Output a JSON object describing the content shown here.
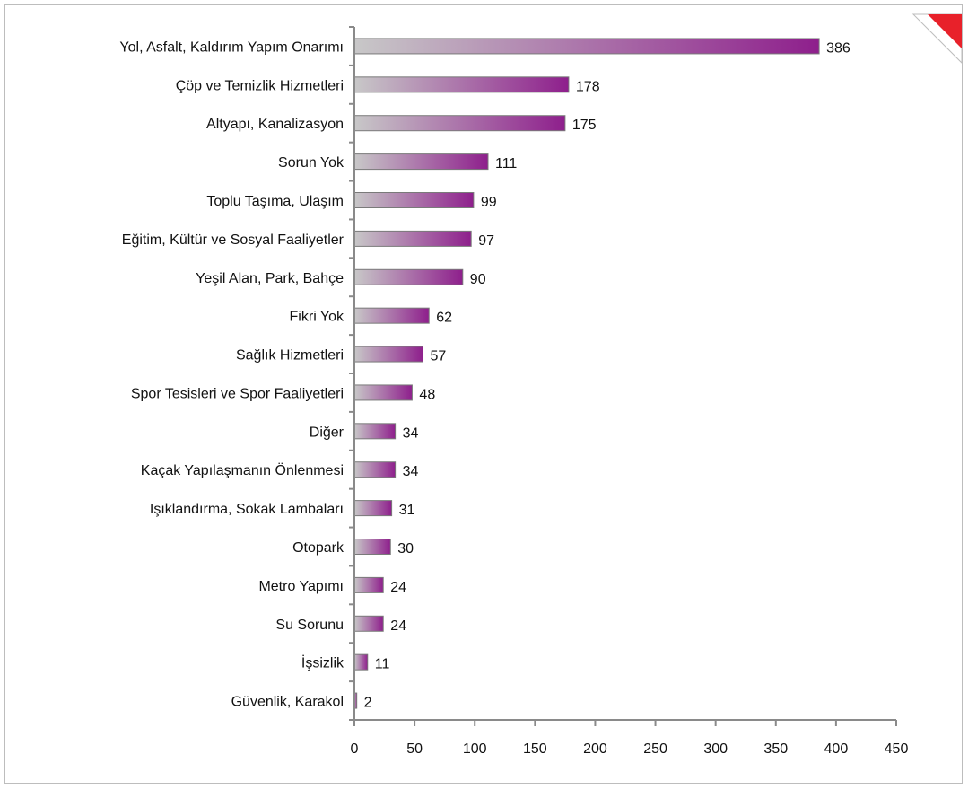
{
  "chart_data": {
    "type": "bar",
    "orientation": "horizontal",
    "categories": [
      "Yol, Asfalt, Kaldırım Yapım Onarımı",
      "Çöp ve Temizlik Hizmetleri",
      "Altyapı, Kanalizasyon",
      "Sorun Yok",
      "Toplu Taşıma, Ulaşım",
      "Eğitim, Kültür ve Sosyal Faaliyetler",
      "Yeşil Alan, Park, Bahçe",
      "Fikri Yok",
      "Sağlık Hizmetleri",
      "Spor Tesisleri ve Spor Faaliyetleri",
      "Diğer",
      "Kaçak Yapılaşmanın Önlenmesi",
      "Işıklandırma, Sokak Lambaları",
      "Otopark",
      "Metro Yapımı",
      "Su Sorunu",
      "İşsizlik",
      "Güvenlik, Karakol"
    ],
    "values": [
      386,
      178,
      175,
      111,
      99,
      97,
      90,
      62,
      57,
      48,
      34,
      34,
      31,
      30,
      24,
      24,
      11,
      2
    ],
    "data_labels": [
      "386",
      "178",
      "175",
      "111",
      "99",
      "97",
      "90",
      "62",
      "57",
      "48",
      "34",
      "34",
      "31",
      "30",
      "24",
      "24",
      "11",
      "2"
    ],
    "xlim": [
      0,
      450
    ],
    "xticks": [
      0,
      50,
      100,
      150,
      200,
      250,
      300,
      350,
      400,
      450
    ],
    "xtick_labels": [
      "0",
      "50",
      "100",
      "150",
      "200",
      "250",
      "300",
      "350",
      "400",
      "450"
    ],
    "title": "",
    "xlabel": "",
    "ylabel": "",
    "grid": false,
    "legend": "none",
    "bar_gradient": [
      "#c8c8c8",
      "#8e1f8c"
    ],
    "corner_marker_color": "#e8212a"
  }
}
